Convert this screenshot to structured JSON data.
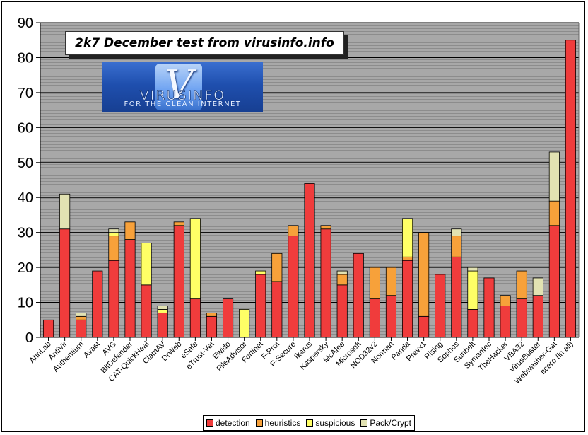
{
  "chart_data": {
    "type": "bar",
    "stacked": true,
    "title": "2k7 December test from virusinfo.info",
    "ylim": [
      0,
      90
    ],
    "yticks": [
      0,
      10,
      20,
      30,
      40,
      50,
      60,
      70,
      80,
      90
    ],
    "grid": true,
    "legend_position": "bottom",
    "categories": [
      "AhnLab",
      "AntiVir",
      "Authentium",
      "Avast",
      "AVG",
      "BitDefender",
      "CAT-QuickHeal",
      "ClamAV",
      "DrWeb",
      "eSafe",
      "eTrust-Vet",
      "Ewido",
      "FileAdvisor",
      "Fortinet",
      "F-Prot",
      "F-Secure",
      "Ikarus",
      "Kaspersky",
      "McAfee",
      "Microsoft",
      "NOD32v2",
      "Norman",
      "Panda",
      "Prevx1",
      "Rising",
      "Sophos",
      "Sunbelt",
      "Symantec",
      "TheHacker",
      "VBA32",
      "VirusBuster",
      "Webwasher-Gat",
      "всего (in all)"
    ],
    "series": [
      {
        "name": "detection",
        "color": "#f03c3c",
        "values": [
          5,
          31,
          5,
          19,
          22,
          28,
          15,
          7,
          32,
          11,
          6,
          11,
          0,
          18,
          16,
          29,
          44,
          31,
          15,
          24,
          11,
          12,
          22,
          6,
          18,
          23,
          8,
          17,
          9,
          11,
          12,
          32,
          85
        ]
      },
      {
        "name": "heuristics",
        "color": "#f7a13a",
        "values": [
          0,
          0,
          1,
          0,
          7,
          5,
          0,
          0,
          1,
          0,
          1,
          0,
          0,
          0,
          8,
          3,
          0,
          1,
          3,
          0,
          9,
          8,
          1,
          24,
          0,
          6,
          0,
          0,
          3,
          8,
          0,
          7,
          0
        ]
      },
      {
        "name": "suspicious",
        "color": "#ffff66",
        "values": [
          0,
          0,
          0,
          0,
          1,
          0,
          12,
          1,
          0,
          23,
          0,
          0,
          8,
          1,
          0,
          0,
          0,
          0,
          0,
          0,
          0,
          0,
          11,
          0,
          0,
          0,
          11,
          0,
          0,
          0,
          0,
          0,
          0
        ]
      },
      {
        "name": "Pack/Crypt",
        "color": "#e2e2b2",
        "values": [
          0,
          10,
          1,
          0,
          1,
          0,
          0,
          1,
          0,
          0,
          0,
          0,
          0,
          0,
          0,
          0,
          0,
          0,
          1,
          0,
          0,
          0,
          0,
          0,
          0,
          2,
          1,
          0,
          0,
          0,
          5,
          14,
          0
        ]
      }
    ]
  },
  "logo": {
    "name": "VIRUSINFO",
    "tagline": "FOR THE CLEAN INTERNET",
    "glyph": "V"
  }
}
